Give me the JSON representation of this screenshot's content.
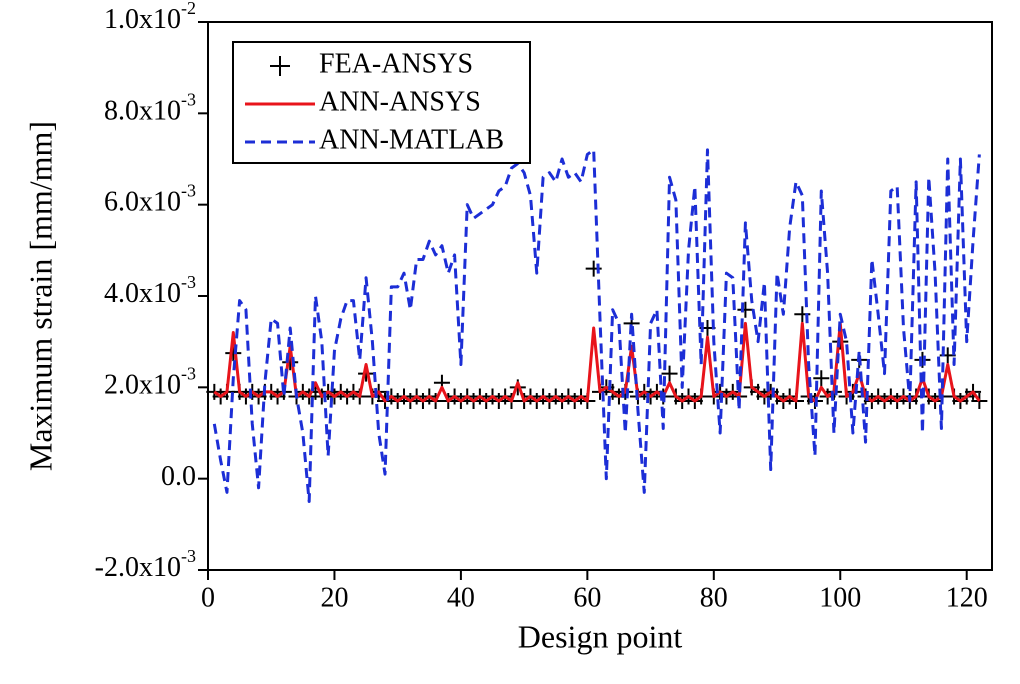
{
  "chart_data": {
    "type": "line",
    "xlabel": "Design point",
    "ylabel": "Maximum strain [mm/mm]",
    "xlim": [
      0,
      124
    ],
    "xticks": [
      0,
      20,
      40,
      60,
      80,
      100,
      120
    ],
    "ylim": [
      -0.002,
      0.01
    ],
    "yticks": [
      {
        "value": -0.002,
        "label": "-2.0x10-3"
      },
      {
        "value": 0,
        "label": "0.0"
      },
      {
        "value": 0.002,
        "label": "2.0x10-3"
      },
      {
        "value": 0.004,
        "label": "4.0x10-3"
      },
      {
        "value": 0.006,
        "label": "6.0x10-3"
      },
      {
        "value": 0.008,
        "label": "8.0x10-3"
      },
      {
        "value": 0.01,
        "label": "1.0x10-2"
      }
    ],
    "legend": "upper left",
    "x": [
      1,
      2,
      3,
      4,
      5,
      6,
      7,
      8,
      9,
      10,
      11,
      12,
      13,
      14,
      15,
      16,
      17,
      18,
      19,
      20,
      21,
      22,
      23,
      24,
      25,
      26,
      27,
      28,
      29,
      30,
      31,
      32,
      33,
      34,
      35,
      36,
      37,
      38,
      39,
      40,
      41,
      42,
      43,
      44,
      45,
      46,
      47,
      48,
      49,
      50,
      51,
      52,
      53,
      54,
      55,
      56,
      57,
      58,
      59,
      60,
      61,
      62,
      63,
      64,
      65,
      66,
      67,
      68,
      69,
      70,
      71,
      72,
      73,
      74,
      75,
      76,
      77,
      78,
      79,
      80,
      81,
      82,
      83,
      84,
      85,
      86,
      87,
      88,
      89,
      90,
      91,
      92,
      93,
      94,
      95,
      96,
      97,
      98,
      99,
      100,
      101,
      102,
      103,
      104,
      105,
      106,
      107,
      108,
      109,
      110,
      111,
      112,
      113,
      114,
      115,
      116,
      117,
      118,
      119,
      120,
      121,
      122
    ],
    "series": [
      {
        "name": "FEA-ANSYS",
        "color": "#000000",
        "style": "marker",
        "values": [
          0.0019,
          0.0018,
          0.0019,
          0.00275,
          0.0019,
          0.0018,
          0.0019,
          0.0018,
          0.0019,
          0.0019,
          0.0018,
          0.0019,
          0.00255,
          0.0018,
          0.0019,
          0.0018,
          0.0019,
          0.0018,
          0.0019,
          0.0018,
          0.0019,
          0.0018,
          0.0019,
          0.0018,
          0.0023,
          0.0018,
          0.0019,
          0.0017,
          0.0018,
          0.0017,
          0.0018,
          0.0017,
          0.0018,
          0.0017,
          0.0018,
          0.0017,
          0.0021,
          0.0017,
          0.0018,
          0.0017,
          0.0018,
          0.0017,
          0.0018,
          0.0017,
          0.0018,
          0.0017,
          0.0018,
          0.0017,
          0.002,
          0.0017,
          0.0018,
          0.0017,
          0.0018,
          0.0017,
          0.0018,
          0.0017,
          0.0018,
          0.0017,
          0.0018,
          0.0017,
          0.0046,
          0.0019,
          0.002,
          0.0019,
          0.0018,
          0.0019,
          0.0034,
          0.0018,
          0.0019,
          0.0018,
          0.0019,
          0.0018,
          0.0023,
          0.0018,
          0.0017,
          0.0018,
          0.0017,
          0.0018,
          0.0033,
          0.0018,
          0.0019,
          0.0018,
          0.0019,
          0.0018,
          0.0037,
          0.002,
          0.0019,
          0.0018,
          0.0019,
          0.0018,
          0.0017,
          0.0018,
          0.0017,
          0.0036,
          0.0018,
          0.0017,
          0.0022,
          0.0018,
          0.0019,
          0.003,
          0.0018,
          0.0019,
          0.0026,
          0.0018,
          0.0017,
          0.0018,
          0.0017,
          0.0018,
          0.0017,
          0.0018,
          0.0017,
          0.0018,
          0.0026,
          0.0018,
          0.0017,
          0.0018,
          0.0027,
          0.0018,
          0.0017,
          0.0018,
          0.0019,
          0.0017
        ]
      },
      {
        "name": "ANN-ANSYS",
        "color": "#e8141b",
        "style": "solid",
        "values": [
          0.0019,
          0.0018,
          0.0019,
          0.0032,
          0.0019,
          0.0018,
          0.0019,
          0.0018,
          0.0019,
          0.0019,
          0.0018,
          0.0019,
          0.0029,
          0.0018,
          0.0019,
          0.0018,
          0.0021,
          0.0018,
          0.0019,
          0.0018,
          0.0019,
          0.0018,
          0.0019,
          0.0018,
          0.0025,
          0.0018,
          0.0019,
          0.0017,
          0.0018,
          0.0017,
          0.0018,
          0.0017,
          0.0018,
          0.0017,
          0.0018,
          0.0017,
          0.002,
          0.0017,
          0.0018,
          0.0017,
          0.0018,
          0.0017,
          0.0018,
          0.0017,
          0.0018,
          0.0017,
          0.0018,
          0.0017,
          0.0021,
          0.0017,
          0.0018,
          0.0017,
          0.0018,
          0.0017,
          0.0018,
          0.0017,
          0.0018,
          0.0017,
          0.0018,
          0.0017,
          0.0033,
          0.0019,
          0.002,
          0.0019,
          0.0018,
          0.0019,
          0.0029,
          0.0018,
          0.0019,
          0.0018,
          0.0019,
          0.0018,
          0.0021,
          0.0018,
          0.0017,
          0.0018,
          0.0017,
          0.0018,
          0.0031,
          0.0018,
          0.0019,
          0.0018,
          0.0019,
          0.0018,
          0.0034,
          0.002,
          0.0019,
          0.0018,
          0.0019,
          0.0018,
          0.0017,
          0.0018,
          0.0017,
          0.0034,
          0.0018,
          0.0017,
          0.002,
          0.0018,
          0.0019,
          0.0034,
          0.0018,
          0.0019,
          0.0023,
          0.0018,
          0.0017,
          0.0018,
          0.0017,
          0.0018,
          0.0017,
          0.0018,
          0.0017,
          0.0018,
          0.0022,
          0.0018,
          0.0017,
          0.0018,
          0.0025,
          0.0018,
          0.0017,
          0.0018,
          0.0019,
          0.0017
        ]
      },
      {
        "name": "ANN-MATLAB",
        "color": "#1c2ed6",
        "style": "dashed",
        "values": [
          0.0012,
          0.0004,
          -0.0003,
          0.0022,
          0.0039,
          0.0037,
          0.0012,
          -0.0002,
          0.0021,
          0.0035,
          0.0034,
          0.0018,
          0.0033,
          0.0018,
          0.001,
          -0.0005,
          0.004,
          0.003,
          0.0005,
          0.0028,
          0.0035,
          0.0039,
          0.0039,
          0.0026,
          0.0044,
          0.003,
          0.001,
          0.0001,
          0.0042,
          0.0042,
          0.0045,
          0.0037,
          0.0048,
          0.0048,
          0.0052,
          0.0049,
          0.0051,
          0.0045,
          0.0049,
          0.0025,
          0.006,
          0.0057,
          0.0058,
          0.0059,
          0.006,
          0.0063,
          0.0064,
          0.0068,
          0.0069,
          0.0067,
          0.0062,
          0.0045,
          0.0066,
          0.0067,
          0.0065,
          0.007,
          0.0066,
          0.0067,
          0.0065,
          0.0071,
          0.0072,
          0.0035,
          0.0,
          0.0037,
          0.0034,
          0.001,
          0.0036,
          0.0015,
          -0.0003,
          0.0034,
          0.0037,
          0.0011,
          0.0066,
          0.0061,
          0.002,
          0.005,
          0.0064,
          0.0025,
          0.0072,
          0.003,
          0.001,
          0.0045,
          0.0044,
          0.0015,
          0.0056,
          0.0039,
          0.003,
          0.0043,
          0.0002,
          0.0045,
          0.0036,
          0.0055,
          0.0065,
          0.0062,
          0.0025,
          0.0005,
          0.0063,
          0.0045,
          0.001,
          0.0036,
          0.003,
          0.001,
          0.0028,
          0.0008,
          0.0048,
          0.0036,
          0.0023,
          0.0063,
          0.0064,
          0.0033,
          0.0017,
          0.0065,
          0.001,
          0.0066,
          0.0045,
          0.0011,
          0.007,
          0.0025,
          0.007,
          0.003,
          0.0052,
          0.0071
        ]
      }
    ]
  }
}
